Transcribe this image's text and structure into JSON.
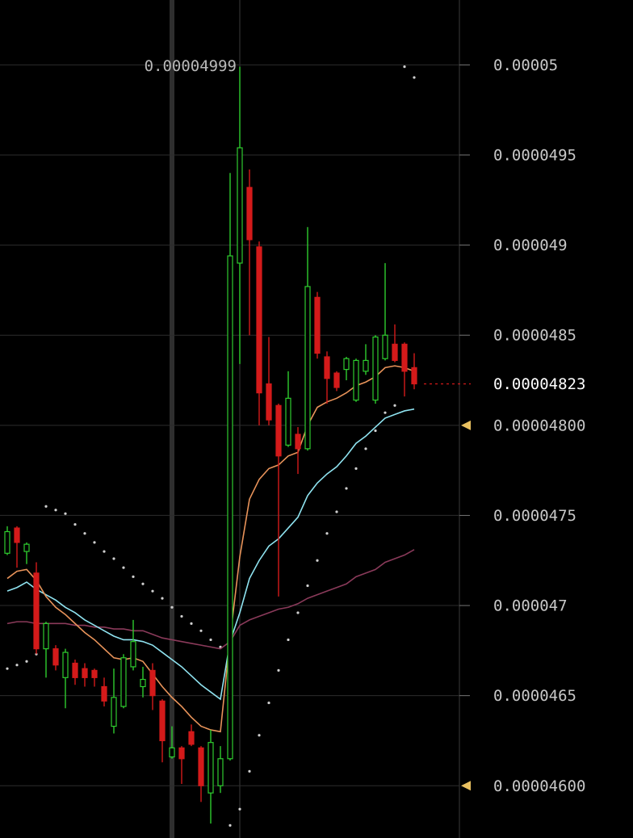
{
  "chart_data": {
    "type": "candlestick",
    "ylim": [
      4.571e-05,
      5.036e-05
    ],
    "yticks": [
      5e-05,
      4.95e-05,
      4.9e-05,
      4.85e-05,
      {
        "value": 4.8e-05,
        "label": "0.00004800"
      },
      4.75e-05,
      4.7e-05,
      4.65e-05,
      {
        "value": 4.6e-05,
        "label": "0.00004600"
      }
    ],
    "grid": true,
    "up_color": "#2ecc2e",
    "down_color": "#d41a1a",
    "max_price": 4.999e-05,
    "last_price": 4.823e-05,
    "open": [
      4.729e-05,
      4.743e-05,
      4.73e-05,
      4.718e-05,
      4.676e-05,
      4.676e-05,
      4.66e-05,
      4.668e-05,
      4.665e-05,
      4.664e-05,
      4.655e-05,
      4.633e-05,
      4.644e-05,
      4.666e-05,
      4.655e-05,
      4.664e-05,
      4.647e-05,
      4.616e-05,
      4.621e-05,
      4.63e-05,
      4.621e-05,
      4.596e-05,
      4.6e-05,
      4.615e-05,
      4.89e-05,
      4.932e-05,
      4.899e-05,
      4.823e-05,
      4.811e-05,
      4.789e-05,
      4.795e-05,
      4.787e-05,
      4.871e-05,
      4.838e-05,
      4.829e-05,
      4.831e-05,
      4.814e-05,
      4.83e-05,
      4.814e-05,
      4.837e-05,
      4.845e-05,
      4.845e-05,
      4.832e-05
    ],
    "high": [
      4.744e-05,
      4.744e-05,
      4.735e-05,
      4.724e-05,
      4.691e-05,
      4.678e-05,
      4.676e-05,
      4.67e-05,
      4.668e-05,
      4.665e-05,
      4.66e-05,
      4.665e-05,
      4.673e-05,
      4.692e-05,
      4.666e-05,
      4.668e-05,
      4.648e-05,
      4.633e-05,
      4.622e-05,
      4.634e-05,
      4.622e-05,
      4.631e-05,
      4.622e-05,
      4.94e-05,
      4.999e-05,
      4.942e-05,
      4.902e-05,
      4.849e-05,
      4.812e-05,
      4.83e-05,
      4.799e-05,
      4.91e-05,
      4.874e-05,
      4.841e-05,
      4.83e-05,
      4.838e-05,
      4.837e-05,
      4.845e-05,
      4.85e-05,
      4.89e-05,
      4.856e-05,
      4.846e-05,
      4.84e-05
    ],
    "low": [
      4.728e-05,
      4.721e-05,
      4.723e-05,
      4.673e-05,
      4.66e-05,
      4.664e-05,
      4.643e-05,
      4.656e-05,
      4.655e-05,
      4.655e-05,
      4.644e-05,
      4.629e-05,
      4.643e-05,
      4.664e-05,
      4.649e-05,
      4.642e-05,
      4.613e-05,
      4.615e-05,
      4.601e-05,
      4.622e-05,
      4.591e-05,
      4.579e-05,
      4.596e-05,
      4.614e-05,
      4.834e-05,
      4.85e-05,
      4.8e-05,
      4.8e-05,
      4.705e-05,
      4.788e-05,
      4.773e-05,
      4.786e-05,
      4.837e-05,
      4.812e-05,
      4.819e-05,
      4.825e-05,
      4.813e-05,
      4.828e-05,
      4.812e-05,
      4.836e-05,
      4.835e-05,
      4.816e-05,
      4.82e-05
    ],
    "close": [
      4.741e-05,
      4.735e-05,
      4.734e-05,
      4.676e-05,
      4.69e-05,
      4.667e-05,
      4.674e-05,
      4.66e-05,
      4.66e-05,
      4.66e-05,
      4.647e-05,
      4.649e-05,
      4.671e-05,
      4.68e-05,
      4.659e-05,
      4.65e-05,
      4.625e-05,
      4.621e-05,
      4.615e-05,
      4.623e-05,
      4.6e-05,
      4.624e-05,
      4.615e-05,
      4.894e-05,
      4.954e-05,
      4.903e-05,
      4.818e-05,
      4.803e-05,
      4.783e-05,
      4.815e-05,
      4.787e-05,
      4.877e-05,
      4.84e-05,
      4.826e-05,
      4.821e-05,
      4.837e-05,
      4.836e-05,
      4.836e-05,
      4.849e-05,
      4.85e-05,
      4.836e-05,
      4.83e-05,
      4.823e-05
    ],
    "lines": [
      {
        "color": "#e8935a",
        "values": [
          4.715e-05,
          4.719e-05,
          4.72e-05,
          4.714e-05,
          4.705e-05,
          4.699e-05,
          4.695e-05,
          4.69e-05,
          4.685e-05,
          4.681e-05,
          4.676e-05,
          4.671e-05,
          4.67e-05,
          4.671e-05,
          4.669e-05,
          4.662e-05,
          4.655e-05,
          4.649e-05,
          4.644e-05,
          4.638e-05,
          4.633e-05,
          4.631e-05,
          4.63e-05,
          4.682e-05,
          4.727e-05,
          4.759e-05,
          4.77e-05,
          4.776e-05,
          4.778e-05,
          4.783e-05,
          4.785e-05,
          4.8e-05,
          4.81e-05,
          4.813e-05,
          4.815e-05,
          4.818e-05,
          4.822e-05,
          4.824e-05,
          4.827e-05,
          4.832e-05,
          4.833e-05,
          4.832e-05,
          4.83e-05
        ]
      },
      {
        "color": "#8fe3f0",
        "values": [
          4.708e-05,
          4.71e-05,
          4.713e-05,
          4.709e-05,
          4.706e-05,
          4.703e-05,
          4.699e-05,
          4.696e-05,
          4.692e-05,
          4.689e-05,
          4.686e-05,
          4.683e-05,
          4.681e-05,
          4.681e-05,
          4.68e-05,
          4.678e-05,
          4.674e-05,
          4.67e-05,
          4.666e-05,
          4.661e-05,
          4.656e-05,
          4.652e-05,
          4.648e-05,
          4.68e-05,
          4.696e-05,
          4.715e-05,
          4.725e-05,
          4.733e-05,
          4.737e-05,
          4.743e-05,
          4.749e-05,
          4.761e-05,
          4.768e-05,
          4.773e-05,
          4.777e-05,
          4.783e-05,
          4.79e-05,
          4.794e-05,
          4.799e-05,
          4.804e-05,
          4.806e-05,
          4.808e-05,
          4.809e-05
        ]
      },
      {
        "color": "#8a3a5a",
        "values": [
          4.69e-05,
          4.691e-05,
          4.691e-05,
          4.69e-05,
          4.69e-05,
          4.69e-05,
          4.69e-05,
          4.689e-05,
          4.689e-05,
          4.688e-05,
          4.688e-05,
          4.687e-05,
          4.687e-05,
          4.686e-05,
          4.686e-05,
          4.684e-05,
          4.682e-05,
          4.681e-05,
          4.68e-05,
          4.679e-05,
          4.678e-05,
          4.677e-05,
          4.676e-05,
          4.68e-05,
          4.689e-05,
          4.692e-05,
          4.694e-05,
          4.696e-05,
          4.698e-05,
          4.699e-05,
          4.701e-05,
          4.704e-05,
          4.706e-05,
          4.708e-05,
          4.71e-05,
          4.712e-05,
          4.716e-05,
          4.718e-05,
          4.72e-05,
          4.724e-05,
          4.726e-05,
          4.728e-05,
          4.731e-05
        ]
      }
    ],
    "sar": {
      "color": "#cfcfcf",
      "values": [
        4.665e-05,
        4.667e-05,
        4.669e-05,
        4.673e-05,
        4.755e-05,
        4.753e-05,
        4.751e-05,
        4.745e-05,
        4.74e-05,
        4.735e-05,
        4.73e-05,
        4.726e-05,
        4.721e-05,
        4.716e-05,
        4.712e-05,
        4.708e-05,
        4.704e-05,
        4.699e-05,
        4.694e-05,
        4.69e-05,
        4.686e-05,
        4.681e-05,
        4.677e-05,
        4.578e-05,
        4.587e-05,
        4.608e-05,
        4.628e-05,
        4.646e-05,
        4.664e-05,
        4.681e-05,
        4.696e-05,
        4.711e-05,
        4.725e-05,
        4.74e-05,
        4.752e-05,
        4.765e-05,
        4.776e-05,
        4.787e-05,
        4.797e-05,
        4.807e-05,
        4.811e-05,
        4.999e-05,
        4.993e-05
      ]
    }
  }
}
